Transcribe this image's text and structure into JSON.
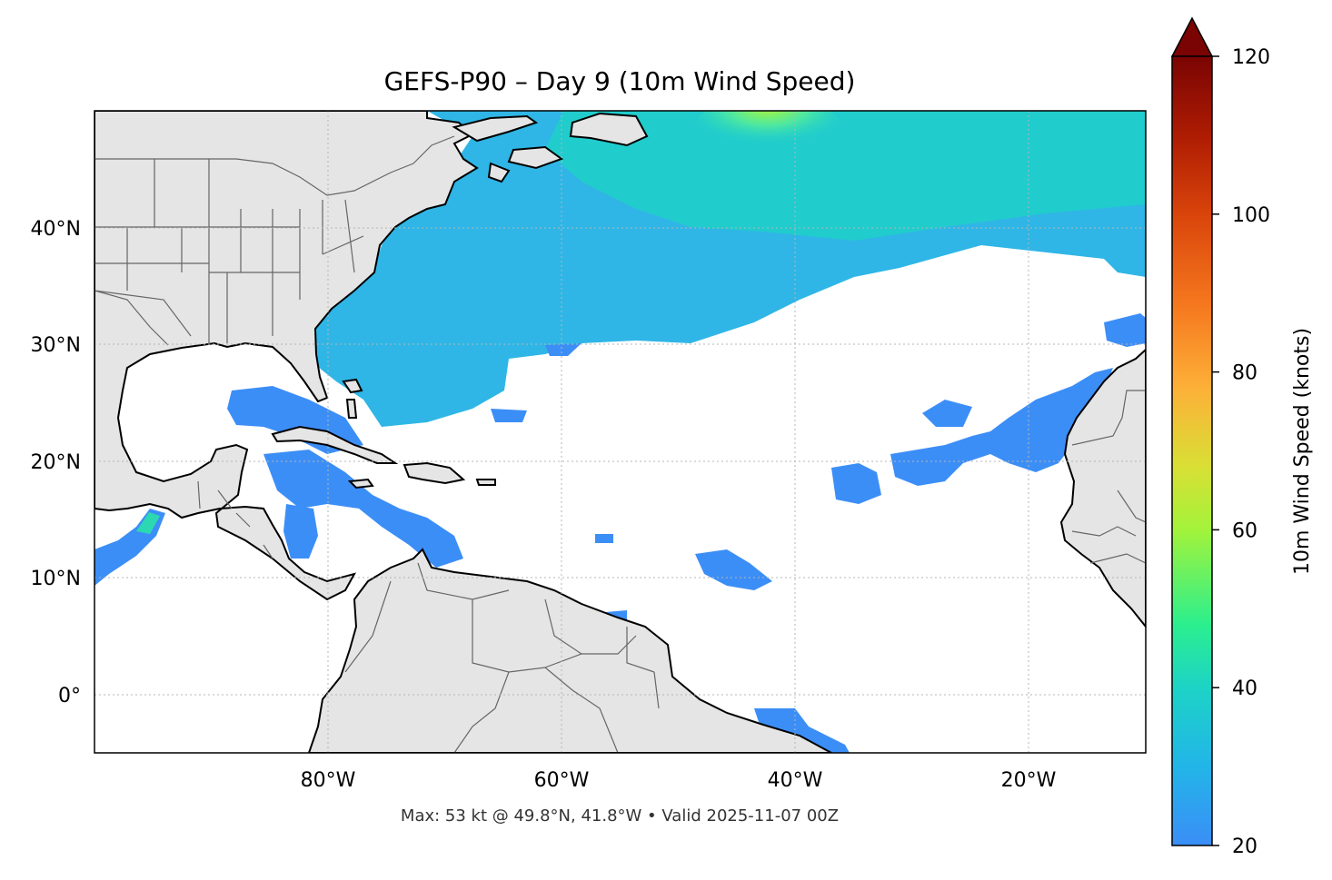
{
  "title": "GEFS-P90 – Day 9 (10m Wind Speed)",
  "footer": "Max: 53 kt @ 49.8°N, 41.8°W • Valid 2025-11-07 00Z",
  "chart_data": {
    "type": "heatmap",
    "title": "GEFS-P90 – Day 9 (10m Wind Speed)",
    "map_extent": {
      "lon": [
        -100,
        -10
      ],
      "lat": [
        -5,
        50
      ]
    },
    "x_ticks": [
      {
        "lon": -80,
        "label": "80°W"
      },
      {
        "lon": -60,
        "label": "60°W"
      },
      {
        "lon": -40,
        "label": "40°W"
      },
      {
        "lon": -20,
        "label": "20°W"
      }
    ],
    "y_ticks": [
      {
        "lat": 40,
        "label": "40°N"
      },
      {
        "lat": 30,
        "label": "30°N"
      },
      {
        "lat": 20,
        "label": "20°N"
      },
      {
        "lat": 10,
        "label": "10°N"
      },
      {
        "lat": 0,
        "label": "0°"
      }
    ],
    "gridlines": true,
    "colorbar": {
      "label": "10m Wind Speed (knots)",
      "min": 20,
      "max": 120,
      "extend": "max",
      "ticks": [
        20,
        40,
        60,
        80,
        100,
        120
      ],
      "colormap": "turbo",
      "placement": "right"
    },
    "max_value": {
      "value": 53,
      "unit": "kt",
      "lat": 49.8,
      "lon": -41.8
    },
    "valid_time": "2025-11-07 00Z",
    "colors": {
      "land": "#e5e5e5",
      "ocean": "#ffffff",
      "wind_low": "#3c8ef7",
      "wind_mid": "#1ad6c0",
      "wind_high": "#9cf43a",
      "coast": "#000000",
      "borders": "#666666"
    }
  }
}
